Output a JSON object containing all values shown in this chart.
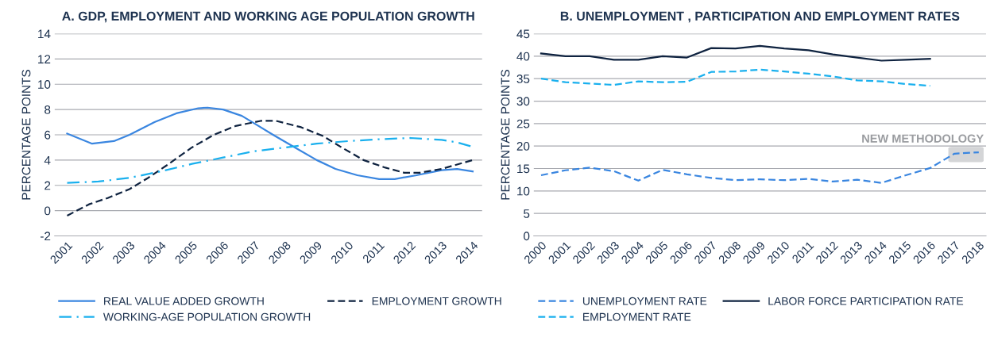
{
  "chart_data": [
    {
      "type": "line",
      "title": "A. GDP, EMPLOYMENT AND WORKING AGE POPULATION GROWTH",
      "ylabel": "PERCENTAGE POINTS",
      "xlim": [
        2000.6,
        2014.3
      ],
      "xticks": [
        2001,
        2002,
        2003,
        2004,
        2005,
        2006,
        2007,
        2008,
        2009,
        2010,
        2011,
        2012,
        2013,
        2014
      ],
      "ylim": [
        -2,
        14
      ],
      "yticks": [
        {
          "value": -2,
          "label": "-2"
        },
        0,
        2,
        4,
        6,
        8,
        10,
        12,
        14
      ],
      "grid": "y",
      "legend": "bottom",
      "series": [
        {
          "name": "REAL VALUE ADDED GROWTH",
          "color": "#3a86e0",
          "line_style": "solid",
          "x": [
            2001,
            2001.8,
            2002.5,
            2003,
            2003.8,
            2004.5,
            2005.2,
            2005.5,
            2006,
            2006.6,
            2007,
            2007.6,
            2008.3,
            2009,
            2009.6,
            2010.3,
            2011,
            2011.5,
            2012.2,
            2013,
            2013.5,
            2014
          ],
          "values": [
            6.1,
            5.3,
            5.5,
            6,
            7,
            7.7,
            8.1,
            8.15,
            8,
            7.5,
            6.9,
            6,
            5,
            4,
            3.3,
            2.8,
            2.5,
            2.5,
            2.8,
            3.2,
            3.3,
            3.1
          ]
        },
        {
          "name": "EMPLOYMENT GROWTH",
          "color": "#0f2340",
          "line_style": "dashed",
          "x": [
            2001,
            2001.7,
            2002.3,
            2003,
            2003.6,
            2004.2,
            2005,
            2005.7,
            2006.4,
            2007.2,
            2007.7,
            2008.5,
            2009.2,
            2009.8,
            2010.5,
            2011.2,
            2011.8,
            2012.3,
            2013,
            2014
          ],
          "values": [
            -0.4,
            0.5,
            1,
            1.7,
            2.6,
            3.6,
            5,
            6,
            6.7,
            7.1,
            7.1,
            6.6,
            5.9,
            5,
            4,
            3.4,
            3,
            3,
            3.3,
            4
          ]
        },
        {
          "name": "WORKING-AGE POPULATION GROWTH",
          "color": "#1ab0ee",
          "line_style": "dashdot",
          "x": [
            2001,
            2002,
            2003,
            2004,
            2005,
            2006,
            2007,
            2008,
            2009,
            2010,
            2011,
            2012,
            2013,
            2013.5,
            2014
          ],
          "values": [
            2.2,
            2.3,
            2.6,
            3.1,
            3.7,
            4.2,
            4.7,
            5,
            5.3,
            5.5,
            5.65,
            5.75,
            5.6,
            5.4,
            5.05
          ]
        }
      ]
    },
    {
      "type": "line",
      "title": "B. UNEMPLOYMENT , PARTICIPATION AND EMPLOYMENT RATES",
      "ylabel": "PERCENTAGE POINTS",
      "categories": [
        "2000",
        "2001",
        "2002",
        "2003",
        "2004",
        "2005",
        "2006",
        "2007",
        "2008",
        "2009",
        "2010",
        "2011",
        "2012",
        "2013",
        "2014",
        "2015",
        "2016",
        "2017",
        "2018"
      ],
      "ylim": [
        0,
        45
      ],
      "yticks": [
        0,
        5,
        10,
        15,
        20,
        25,
        30,
        35,
        40,
        45
      ],
      "grid": "y",
      "legend": "bottom",
      "annotations": [
        "NEW METHODOLOGY"
      ],
      "series": [
        {
          "name": "UNEMPLOYMENT RATE",
          "color": "#3a86e0",
          "line_style": "dashed",
          "values": [
            13.5,
            14.6,
            15.2,
            14.4,
            12.3,
            14.7,
            13.7,
            12.9,
            12.4,
            12.6,
            12.4,
            12.7,
            12.1,
            12.5,
            11.8,
            13.5,
            15.1,
            18.3,
            18.6
          ]
        },
        {
          "name": "LABOR FORCE PARTICIPATION RATE",
          "color": "#0f2340",
          "line_style": "solid",
          "values": [
            40.6,
            40,
            40,
            39.2,
            39.2,
            40,
            39.7,
            41.8,
            41.7,
            42.3,
            41.7,
            41.3,
            40.4,
            39.7,
            39,
            39.2,
            39.4,
            null,
            null
          ]
        },
        {
          "name": "EMPLOYMENT RATE",
          "color": "#1ab0ee",
          "line_style": "dashed",
          "values": [
            35,
            34.2,
            33.9,
            33.6,
            34.4,
            34.2,
            34.3,
            36.5,
            36.6,
            37,
            36.6,
            36.1,
            35.5,
            34.6,
            34.4,
            33.8,
            33.4,
            null,
            null
          ]
        }
      ]
    }
  ]
}
